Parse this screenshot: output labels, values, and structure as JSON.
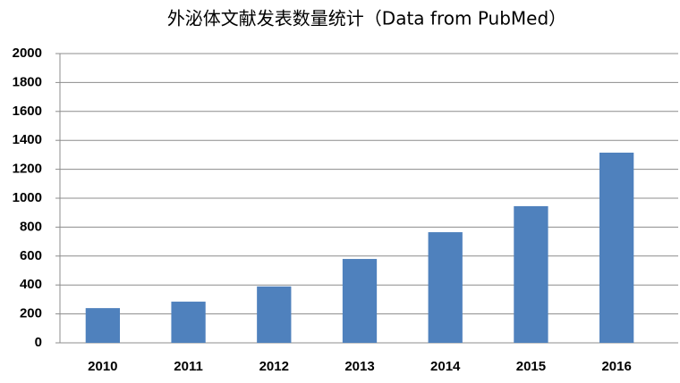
{
  "chart_data": {
    "type": "bar",
    "title": "外泌体文献发表数量统计（Data from PubMed）",
    "categories": [
      "2010",
      "2011",
      "2012",
      "2013",
      "2014",
      "2015",
      "2016"
    ],
    "values": [
      240,
      285,
      390,
      580,
      765,
      945,
      1315
    ],
    "color": "#4f81bd",
    "ylim": [
      0,
      2000
    ],
    "yticks": [
      0,
      200,
      400,
      600,
      800,
      1000,
      1200,
      1400,
      1600,
      1800,
      2000
    ],
    "grid": true
  }
}
